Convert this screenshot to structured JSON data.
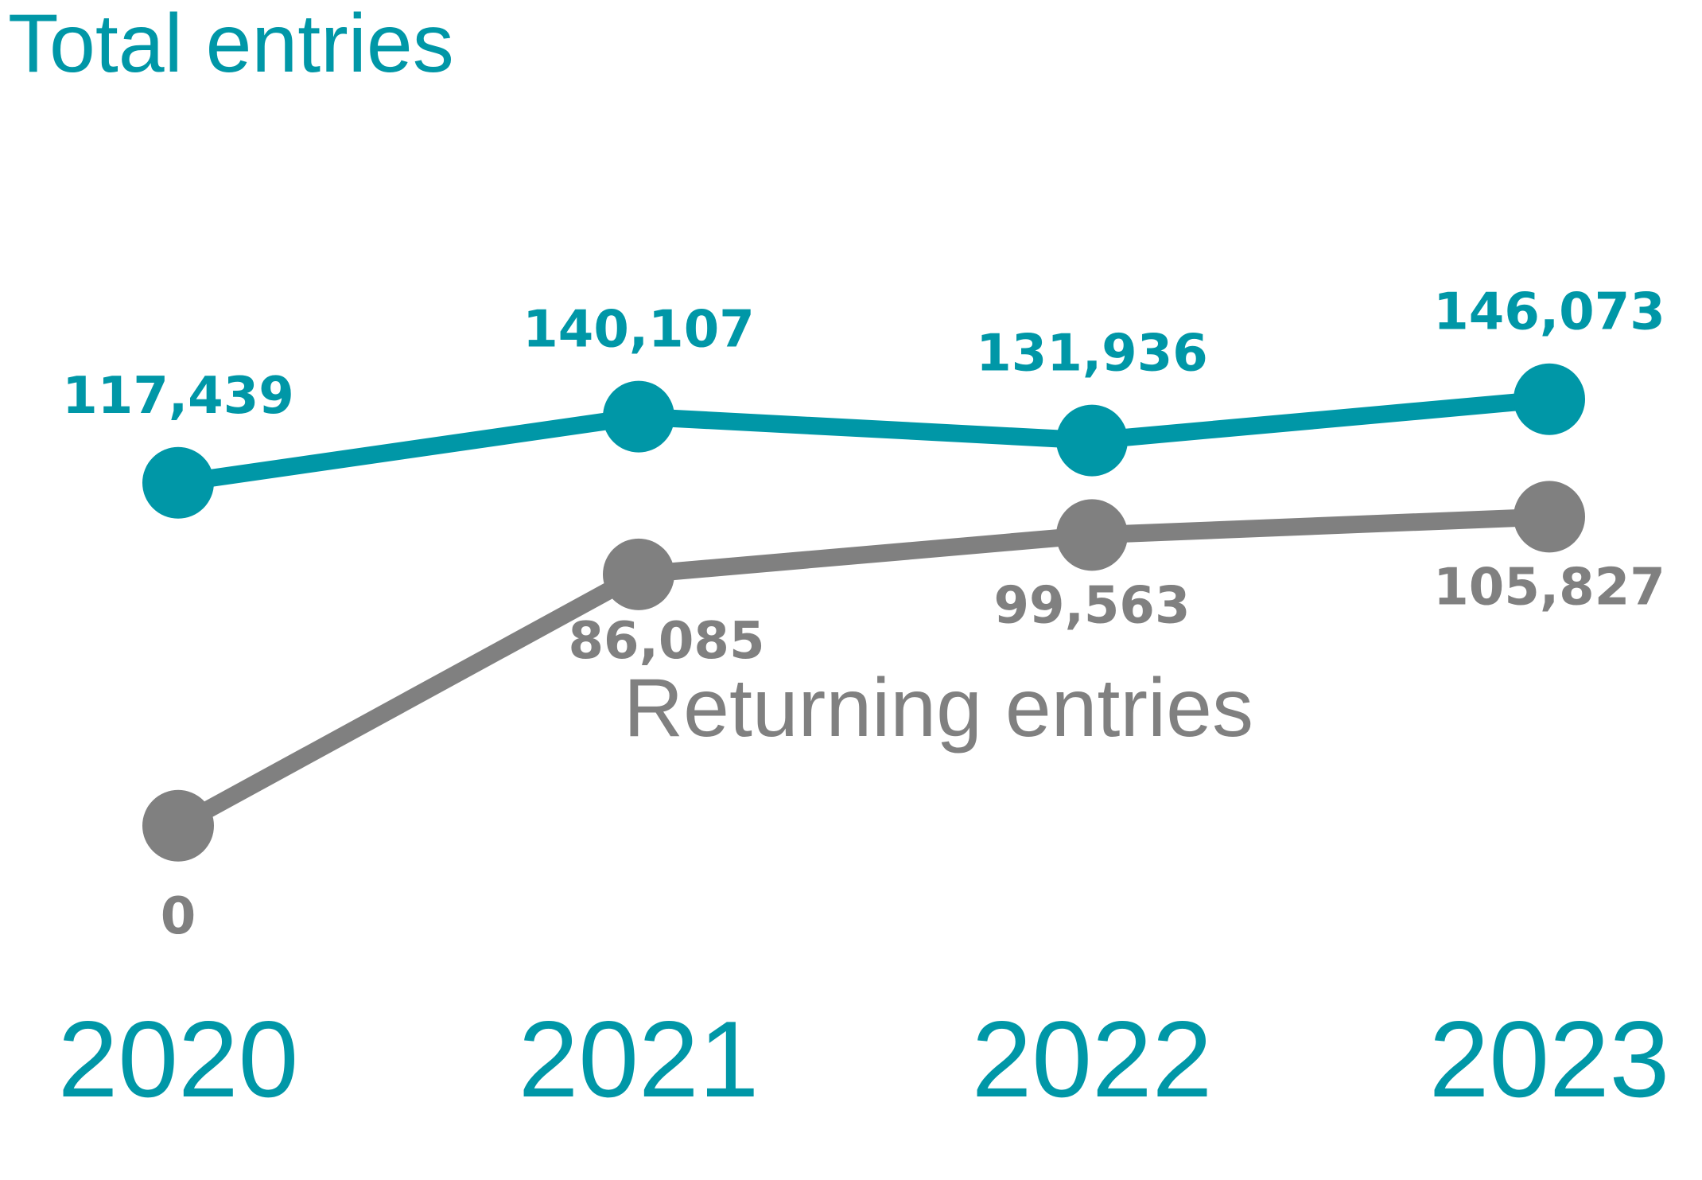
{
  "chart_data": {
    "type": "line",
    "categories": [
      "2020",
      "2021",
      "2022",
      "2023"
    ],
    "series": [
      {
        "name": "Total entries",
        "values": [
          117439,
          140107,
          131936,
          146073
        ],
        "labels": [
          "117,439",
          "140,107",
          "131,936",
          "146,073"
        ],
        "color": "#0097A7"
      },
      {
        "name": "Returning entries",
        "values": [
          0,
          86085,
          99563,
          105827
        ],
        "labels": [
          "0",
          "86,085",
          "99,563",
          "105,827"
        ],
        "color": "#808080"
      }
    ],
    "title": "",
    "xlabel": "",
    "ylabel": "",
    "grid": false,
    "axis_color": "#0097A7"
  }
}
